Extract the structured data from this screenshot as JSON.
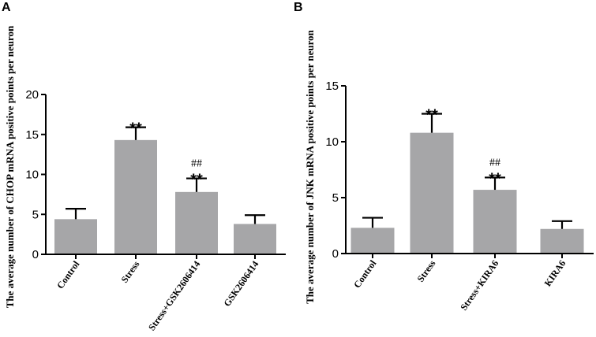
{
  "chart_data": [
    {
      "type": "bar",
      "panel": "A",
      "title": "",
      "xlabel": "",
      "ylabel": "The average number of CHOP mRNA positive points per neuron",
      "ylim": [
        0,
        20
      ],
      "yticks": [
        0,
        5,
        10,
        15,
        20
      ],
      "categories": [
        "Control",
        "Stress",
        "Stress+GSK2606414",
        "GSK2606414"
      ],
      "values": [
        4.4,
        14.3,
        7.8,
        3.8
      ],
      "errors": [
        1.3,
        1.6,
        1.7,
        1.1
      ],
      "annotations": [
        {
          "index": 1,
          "lines": [
            "**"
          ]
        },
        {
          "index": 2,
          "lines": [
            "##",
            "**"
          ]
        }
      ],
      "bar_color": "#a6a6a8"
    },
    {
      "type": "bar",
      "panel": "B",
      "title": "",
      "xlabel": "",
      "ylabel": "The average number of JNK mRNA positive points per neuron",
      "ylim": [
        0,
        15
      ],
      "yticks": [
        0,
        5,
        10,
        15
      ],
      "categories": [
        "Control",
        "Stress",
        "Stress+KIRA6",
        "KIRA6"
      ],
      "values": [
        2.3,
        10.8,
        5.7,
        2.2
      ],
      "errors": [
        0.9,
        1.7,
        1.1,
        0.7
      ],
      "annotations": [
        {
          "index": 1,
          "lines": [
            "**"
          ]
        },
        {
          "index": 2,
          "lines": [
            "##",
            "**"
          ]
        }
      ],
      "bar_color": "#a6a6a8"
    }
  ]
}
